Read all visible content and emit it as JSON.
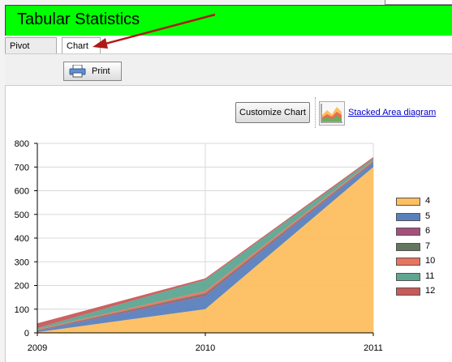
{
  "window": {
    "title": "Tabular Statistics"
  },
  "tabs": [
    {
      "label": "Pivot Table"
    },
    {
      "label": "Chart"
    }
  ],
  "toolbar": {
    "print_label": "Print"
  },
  "chart_controls": {
    "customize_label": "Customize Chart",
    "chart_type_label": "Stacked Area diagram"
  },
  "chart_data": {
    "type": "area",
    "stacked": true,
    "x": [
      "2009",
      "2010",
      "2011"
    ],
    "ylim": [
      0,
      800
    ],
    "yticks": [
      0,
      100,
      200,
      300,
      400,
      500,
      600,
      700,
      800
    ],
    "grid": true,
    "legend_position": "right",
    "series": [
      {
        "name": "4",
        "color": "#fdbf5f",
        "values": [
          3,
          100,
          700
        ]
      },
      {
        "name": "5",
        "color": "#5a7fbd",
        "values": [
          5,
          55,
          18
        ]
      },
      {
        "name": "6",
        "color": "#a5507a",
        "values": [
          2,
          6,
          3
        ]
      },
      {
        "name": "7",
        "color": "#63765f",
        "values": [
          2,
          6,
          3
        ]
      },
      {
        "name": "10",
        "color": "#e8735f",
        "values": [
          3,
          10,
          4
        ]
      },
      {
        "name": "11",
        "color": "#5ea592",
        "values": [
          5,
          47,
          8
        ]
      },
      {
        "name": "12",
        "color": "#c85a5a",
        "values": [
          20,
          6,
          6
        ]
      }
    ]
  }
}
